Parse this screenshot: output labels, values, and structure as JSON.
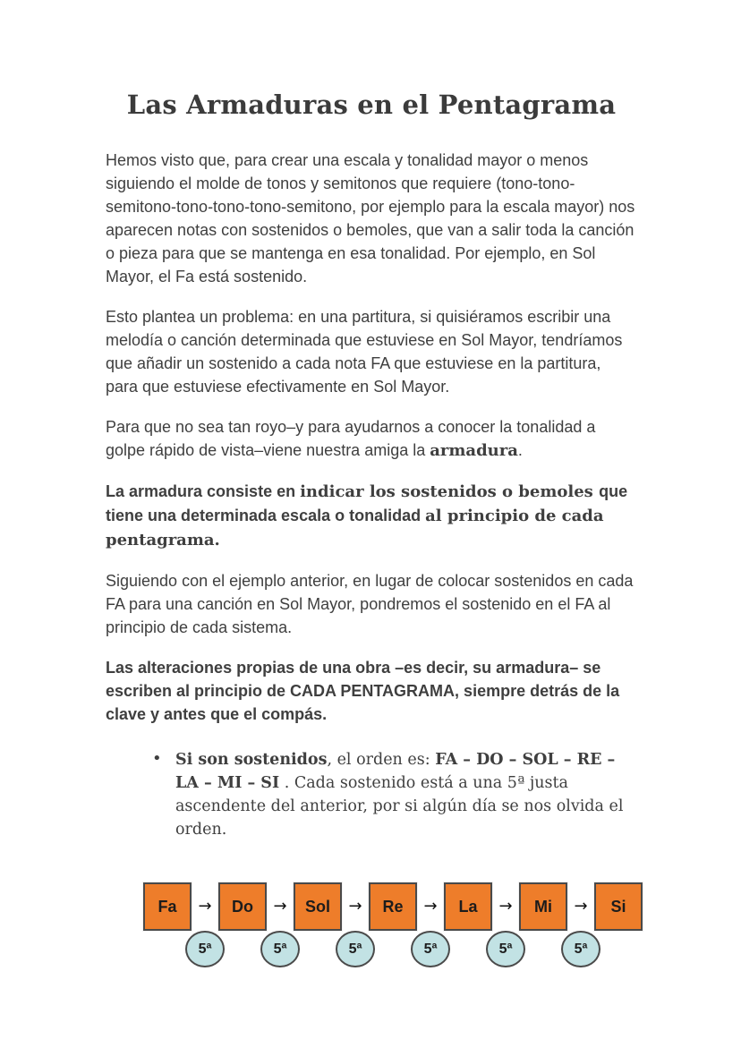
{
  "title": "Las Armaduras en el Pentagrama",
  "paragraphs": [
    {
      "runs": [
        {
          "s": "sans",
          "t": "Hemos visto que, para crear una escala y tonalidad mayor o menos siguiendo el molde de tonos y semitonos que requiere (tono-tono-semitono-tono-tono-tono-semitono, por ejemplo para la escala mayor) nos aparecen notas con sostenidos o bemoles, que van a salir toda la canción o pieza para que se mantenga en esa tonalidad. Por ejemplo, en Sol Mayor, el Fa está sostenido."
        }
      ]
    },
    {
      "runs": [
        {
          "s": "sans",
          "t": "Esto plantea un problema: en una partitura, si quisiéramos escribir una melodía o canción determinada que estuviese en Sol Mayor, tendríamos que añadir un sostenido a cada nota FA que estuviese en la partitura, para que estuviese efectivamente en Sol Mayor."
        }
      ]
    },
    {
      "runs": [
        {
          "s": "sans",
          "t": "Para que no sea tan royo–y para ayudarnos a conocer la tonalidad a golpe rápido de vista–viene nuestra amiga la "
        },
        {
          "s": "serifb",
          "t": "armadura"
        },
        {
          "s": "sans",
          "t": "."
        }
      ]
    },
    {
      "runs": [
        {
          "s": "sansb",
          "t": "La armadura consiste en "
        },
        {
          "s": "serifb",
          "t": "indicar los sostenidos o bemoles "
        },
        {
          "s": "sansb",
          "t": "que tiene una determinada escala o tonalidad "
        },
        {
          "s": "serifb",
          "t": " al principio de cada pentagrama."
        }
      ]
    },
    {
      "runs": [
        {
          "s": "sans",
          "t": "Siguiendo con el ejemplo anterior, en lugar de colocar sostenidos en cada FA para una canción en Sol Mayor, pondremos el sostenido en el FA al principio de cada sistema."
        }
      ]
    },
    {
      "runs": [
        {
          "s": "sansb",
          "t": "Las alteraciones propias de una obra –es decir, su armadura– se escriben al principio de CADA PENTAGRAMA, siempre detrás de la clave y antes que el compás."
        }
      ]
    }
  ],
  "bullet": {
    "marker": "•",
    "runs": [
      {
        "s": "serifb",
        "t": "Si son sostenidos"
      },
      {
        "s": "serif",
        "t": ", el orden es: "
      },
      {
        "s": "serifb",
        "t": "FA – DO – SOL – RE – LA – MI – SI"
      },
      {
        "s": "serif",
        "t": " . Cada sostenido está a una 5ª justa ascendente del anterior, por si algún día se nos olvida el orden."
      }
    ]
  },
  "diagram": {
    "notes": [
      "Fa",
      "Do",
      "Sol",
      "Re",
      "La",
      "Mi",
      "Si"
    ],
    "interval_label": "5ª",
    "arrow": "→",
    "colors": {
      "box_fill": "#ee7d2a",
      "box_border": "#4a4a4a",
      "circle_fill": "#c2e2e4",
      "circle_border": "#4a4a4a",
      "label_color": "#1c1c1c",
      "text_color": "#3f3f3f"
    }
  }
}
